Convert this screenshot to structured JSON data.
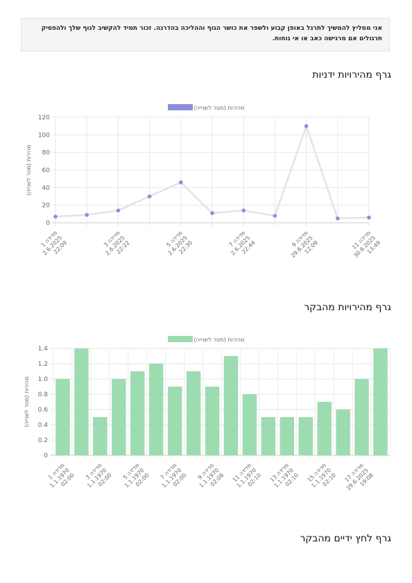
{
  "note": {
    "text": "אני ממליץ להמשיך לתרגל באופן קבוע ולשפר את כושר הגוף וההליכה בהדרגה. זכור תמיד להקשיב לגוף שלך ולהפסיק תרגולים אם מרגישה כאב או אי נוחות."
  },
  "sections": {
    "hand_speed_title": "גרף מהירויות ידניות",
    "visit_speed_title": "גרף מהירויות מהבקר",
    "grip_title": "גרף לחץ ידיים מהבקר"
  },
  "chart_data": [
    {
      "type": "line",
      "series": [
        {
          "name": "מהירות (מטר לשנייה)",
          "values": [
            7,
            9,
            14,
            30,
            46,
            11,
            14,
            8,
            110,
            5,
            6
          ],
          "color": "#8b8fd8"
        }
      ],
      "x_tick_labels": [
        [
          "מדידה 1",
          "2.6.2025",
          "22:09"
        ],
        [
          "מדידה 3",
          "2.6.2025",
          "22:22"
        ],
        [
          "מדידה 5",
          "2.6.2025",
          "22:30"
        ],
        [
          "מדידה 7",
          "2.6.2025",
          "22:44"
        ],
        [
          "מדידה 9",
          "29.6.2025",
          "12:09"
        ],
        [
          "מדידה 11",
          "30.6.2025",
          "13:49"
        ]
      ],
      "ylabel": "מהירות (מטר לשנייה)",
      "ylim": [
        0,
        120
      ],
      "yticks": [
        0,
        20,
        40,
        60,
        80,
        100,
        120
      ],
      "line_color": "#e3e3e3",
      "grid": true,
      "legend": "top-center"
    },
    {
      "type": "bar",
      "series": [
        {
          "name": "מהירות (מטר לשנייה)",
          "values": [
            1.0,
            1.4,
            0.5,
            1.0,
            1.1,
            1.2,
            0.9,
            1.1,
            0.9,
            1.3,
            0.8,
            0.5,
            0.5,
            0.5,
            0.7,
            0.6,
            1.0,
            1.4
          ],
          "color": "#9ddcb1"
        }
      ],
      "x_tick_labels": [
        [
          "מדידה 1",
          "1.1.1970",
          "02:00"
        ],
        [
          "מדידה 3",
          "1.1.1970",
          "02:00"
        ],
        [
          "מדידה 5",
          "1.1.1970",
          "02:00"
        ],
        [
          "מדידה 7",
          "1.1.1970",
          "02:00"
        ],
        [
          "מדידה 9",
          "1.1.1970",
          "02:08"
        ],
        [
          "מדידה 11",
          "1.1.1970",
          "02:10"
        ],
        [
          "מדידה 13",
          "1.1.1970",
          "02:10"
        ],
        [
          "מדידה 15",
          "1.1.1970",
          "02:10"
        ],
        [
          "מדידה 17",
          "29.6.2025",
          "19:08"
        ]
      ],
      "ylabel": "מהירות (מטר לשנייה)",
      "ylim": [
        0,
        1.4
      ],
      "yticks": [
        "0",
        "0.2",
        "0.4",
        "0.6",
        "0.8",
        "1.0",
        "1.2",
        "1.4"
      ],
      "grid": true,
      "legend": "top-center"
    }
  ]
}
